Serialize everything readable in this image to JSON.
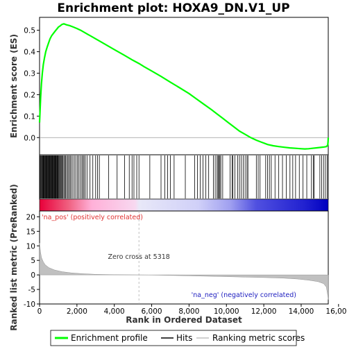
{
  "chart_data": {
    "type": "line",
    "title": "Enrichment plot: HOXA9_DN.V1_UP",
    "top_panel": {
      "ylabel": "Enrichment score (ES)",
      "ylim": [
        -0.08,
        0.56
      ],
      "yticks": [
        0.0,
        0.1,
        0.2,
        0.3,
        0.4,
        0.5
      ],
      "ytick_labels": [
        "0.0",
        "0.1",
        "0.2",
        "0.3",
        "0.4",
        "0.5"
      ],
      "color": "#00ff00",
      "series": [
        {
          "name": "Enrichment profile",
          "x": [
            0,
            30,
            60,
            100,
            150,
            200,
            260,
            330,
            400,
            480,
            560,
            650,
            740,
            830,
            920,
            1010,
            1100,
            1200,
            1300,
            1450,
            1600,
            1800,
            2000,
            2200,
            2400,
            2600,
            2800,
            3000,
            3300,
            3600,
            4000,
            4500,
            5000,
            5318,
            5600,
            6000,
            6500,
            7000,
            7500,
            8000,
            8400,
            8800,
            9200,
            9500,
            9800,
            10100,
            10400,
            10700,
            11000,
            11300,
            11600,
            11900,
            12200,
            12500,
            12800,
            13100,
            13400,
            13700,
            14000,
            14200,
            14400,
            14600,
            14800,
            15000,
            15200,
            15350,
            15420,
            15440,
            15450
          ],
          "y": [
            0.07,
            0.13,
            0.19,
            0.25,
            0.3,
            0.34,
            0.37,
            0.4,
            0.42,
            0.44,
            0.46,
            0.475,
            0.485,
            0.495,
            0.505,
            0.515,
            0.52,
            0.527,
            0.53,
            0.525,
            0.522,
            0.515,
            0.508,
            0.5,
            0.49,
            0.48,
            0.47,
            0.46,
            0.445,
            0.43,
            0.41,
            0.385,
            0.36,
            0.345,
            0.33,
            0.31,
            0.285,
            0.258,
            0.232,
            0.205,
            0.18,
            0.155,
            0.13,
            0.11,
            0.09,
            0.07,
            0.05,
            0.03,
            0.015,
            0.0,
            -0.012,
            -0.022,
            -0.032,
            -0.038,
            -0.042,
            -0.045,
            -0.048,
            -0.05,
            -0.052,
            -0.053,
            -0.052,
            -0.05,
            -0.048,
            -0.046,
            -0.044,
            -0.042,
            -0.035,
            -0.02,
            0.0
          ]
        }
      ]
    },
    "hits_panel": {
      "legend_name": "Hits",
      "positions": [
        20,
        60,
        95,
        130,
        160,
        190,
        220,
        250,
        280,
        310,
        340,
        370,
        400,
        430,
        460,
        490,
        520,
        550,
        580,
        610,
        640,
        670,
        700,
        730,
        760,
        790,
        820,
        850,
        880,
        910,
        940,
        970,
        1000,
        1040,
        1080,
        1120,
        1160,
        1200,
        1250,
        1300,
        1350,
        1400,
        1460,
        1520,
        1580,
        1640,
        1700,
        1780,
        1860,
        1940,
        2020,
        2100,
        2180,
        2260,
        2320,
        2380,
        2450,
        2550,
        2700,
        2850,
        3000,
        3100,
        3200,
        3700,
        4150,
        4550,
        4800,
        4950,
        5050,
        5200,
        5320,
        5900,
        6500,
        6700,
        6850,
        7000,
        7200,
        7800,
        8300,
        8450,
        8600,
        8750,
        8900,
        9050,
        9300,
        9400,
        9500,
        9550,
        9600,
        9650,
        9700,
        9800,
        10200,
        10300,
        10350,
        10450,
        10600,
        10700,
        10800,
        10900,
        11000,
        11100,
        11150,
        11600,
        11700,
        11800,
        12100,
        12200,
        12300,
        12400,
        12600,
        12800,
        13000,
        13200,
        13400,
        13550,
        13700,
        13900,
        14100,
        14300,
        14550,
        14650,
        14700,
        15000,
        15100,
        15200,
        15300,
        15400
      ]
    },
    "ranked_panel": {
      "ylabel": "Ranked list metric (PreRanked)",
      "ylim": [
        -10,
        22
      ],
      "yticks": [
        -10,
        -5,
        0,
        5,
        10,
        15,
        20
      ],
      "ytick_labels": [
        "-10",
        "-5",
        "0",
        "5",
        "10",
        "15",
        "20"
      ],
      "legend_name": "Ranking metric scores",
      "x": [
        0,
        50,
        100,
        200,
        300,
        500,
        800,
        1200,
        1700,
        2300,
        3000,
        4000,
        5000,
        5318,
        6000,
        7000,
        8000,
        9000,
        10000,
        11000,
        12000,
        13000,
        13800,
        14400,
        14900,
        15200,
        15350,
        15420,
        15450
      ],
      "y": [
        11.0,
        8.0,
        6.0,
        4.5,
        3.5,
        2.5,
        1.7,
        1.1,
        0.7,
        0.4,
        0.2,
        0.08,
        0.02,
        0.0,
        -0.05,
        -0.15,
        -0.3,
        -0.45,
        -0.6,
        -0.75,
        -0.9,
        -1.1,
        -1.4,
        -1.8,
        -2.3,
        -3.0,
        -4.2,
        -7.0,
        -8.5
      ],
      "zero_cross_label": "Zero cross at 5318",
      "zero_cross_x": 5318,
      "pos_label": "'na_pos' (positively correlated)",
      "neg_label": "'na_neg' (negatively correlated)"
    },
    "x_axis": {
      "xlabel": "Rank in Ordered Dataset",
      "xlim": [
        0,
        15450
      ],
      "xticks": [
        0,
        2000,
        4000,
        6000,
        8000,
        10000,
        12000,
        14000,
        16000
      ],
      "xtick_labels": [
        "0",
        "2,000",
        "4,000",
        "6,000",
        "8,000",
        "10,000",
        "12,000",
        "14,000",
        "16,000"
      ]
    },
    "colors": {
      "profile": "#00ff00",
      "hits": "#000000",
      "metric_fill": "#c0c0c0",
      "pos_text": "#e03030",
      "neg_text": "#2020c0",
      "zero_line": "#b0b0b0"
    },
    "legend": {
      "placement": "bottom",
      "items": [
        "Enrichment profile",
        "Hits",
        "Ranking metric scores"
      ]
    }
  }
}
